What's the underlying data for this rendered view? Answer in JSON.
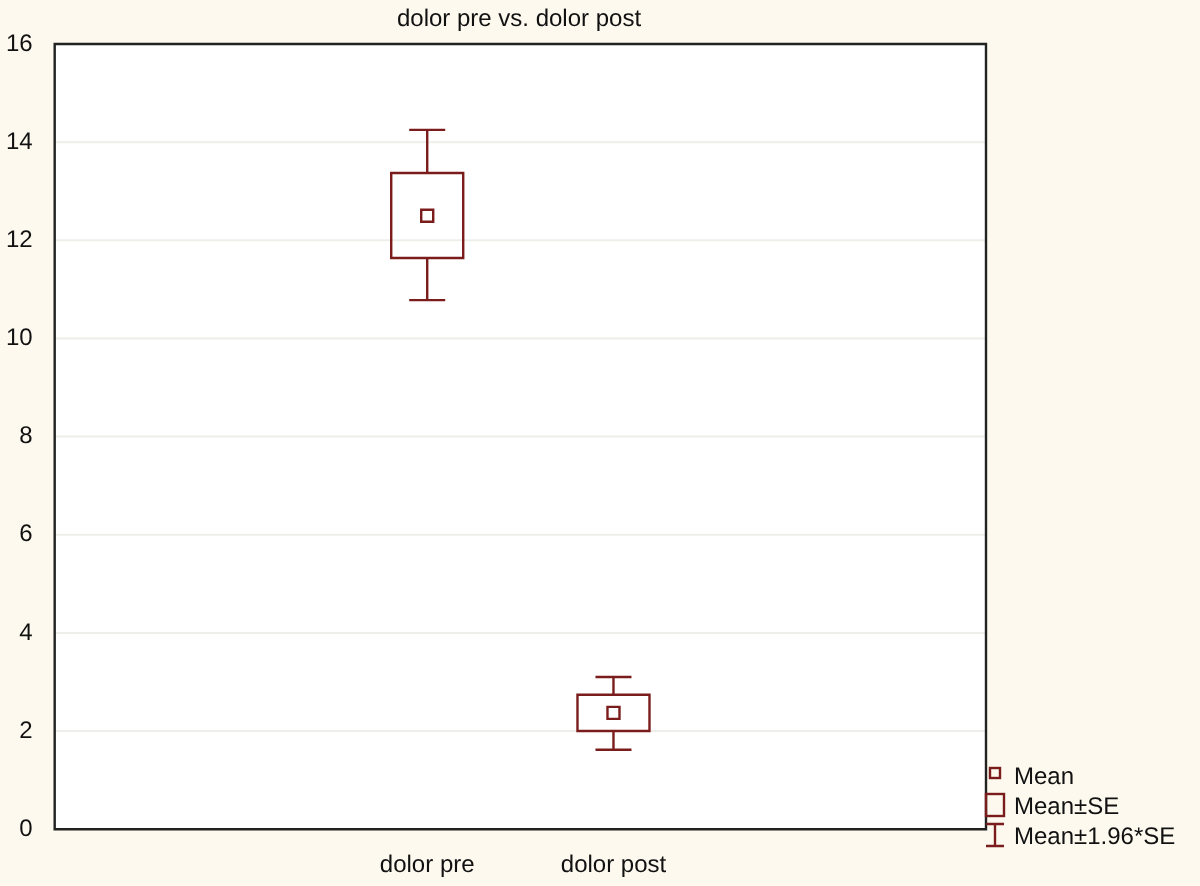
{
  "chart_data": {
    "type": "box",
    "title": "dolor pre vs. dolor post",
    "categories": [
      null,
      "dolor pre",
      "dolor post",
      null
    ],
    "boxes": [
      null,
      {
        "low": 10.78,
        "q1": 11.64,
        "q3": 13.37,
        "high": 14.25,
        "mean": 12.5
      },
      {
        "low": 1.62,
        "q1": 2.0,
        "q3": 2.74,
        "high": 3.1,
        "mean": 2.37
      },
      null
    ],
    "color": "#7b1c1c",
    "ylim": [
      0,
      16
    ],
    "yticks": [
      0,
      2,
      4,
      6,
      8,
      10,
      12,
      14,
      16
    ],
    "grid": "y",
    "annotations": [
      "Mean",
      "Mean±SE",
      "Mean±1.96*SE"
    ]
  }
}
